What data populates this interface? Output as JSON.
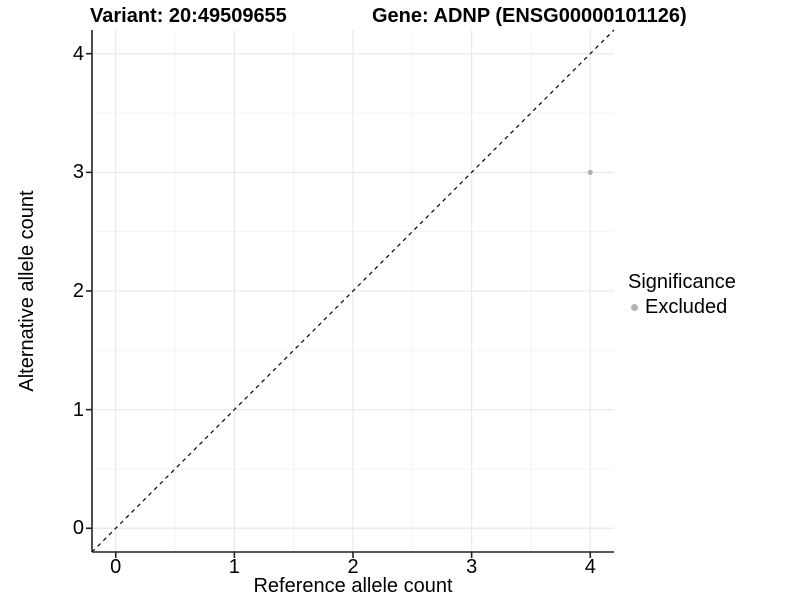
{
  "chart_data": {
    "type": "scatter",
    "title_left": "Variant: 20:49509655",
    "title_right": "Gene: ADNP (ENSG00000101126)",
    "xlabel": "Reference allele count",
    "ylabel": "Alternative allele count",
    "xlim": [
      -0.2,
      4.2
    ],
    "ylim": [
      -0.2,
      4.2
    ],
    "xticks": [
      0,
      1,
      2,
      3,
      4
    ],
    "yticks": [
      0,
      1,
      2,
      3,
      4
    ],
    "xminor": [
      0.5,
      1.5,
      2.5,
      3.5
    ],
    "yminor": [
      0.5,
      1.5,
      2.5,
      3.5
    ],
    "grid": "major and minor gridlines, white panel background",
    "points": [
      {
        "x": 4,
        "y": 3,
        "series": "Excluded"
      }
    ],
    "reference_line": {
      "slope": 1,
      "intercept": 0,
      "style": "dashed"
    },
    "legend": {
      "title": "Significance",
      "position": "right",
      "items": [
        {
          "label": "Excluded",
          "color": "#b3b3b3"
        }
      ]
    }
  },
  "colors": {
    "background": "#ffffff",
    "axis_line": "#222222",
    "tick_mark": "#222222",
    "grid_major": "#e9e9e9",
    "grid_minor": "#f4f4f4",
    "point": "#b3b3b3",
    "reference_line": "#000000",
    "text": "#000000"
  }
}
